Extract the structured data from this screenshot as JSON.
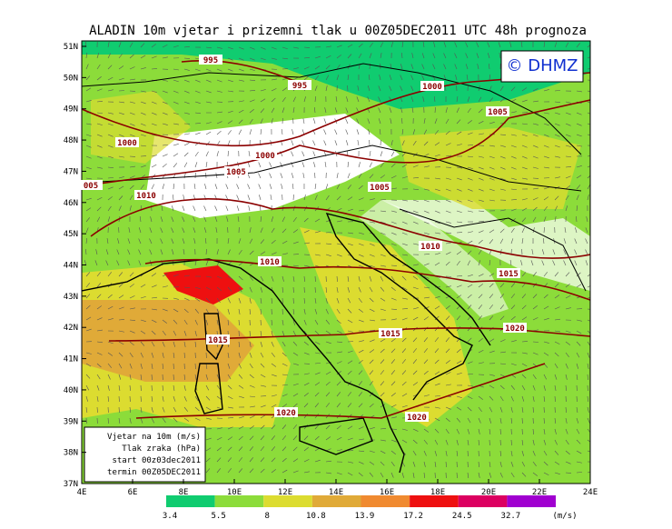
{
  "title": "ALADIN 10m vjetar i prizemni tlak u 00Z05DEC2011 UTC 48h prognoza",
  "watermark": "© DHMZ",
  "lat_labels": [
    "51N",
    "50N",
    "49N",
    "48N",
    "47N",
    "46N",
    "45N",
    "44N",
    "43N",
    "42N",
    "41N",
    "40N",
    "39N",
    "38N",
    "37N"
  ],
  "lon_labels": [
    "4E",
    "6E",
    "8E",
    "10E",
    "12E",
    "14E",
    "16E",
    "18E",
    "20E",
    "22E",
    "24E"
  ],
  "isobar_labels": [
    "995",
    "995",
    "1000",
    "1005",
    "1000",
    "1000",
    "1005",
    "005",
    "1010",
    "1005",
    "1010",
    "1010",
    "1015",
    "1015",
    "1015",
    "1020",
    "1020",
    "1020"
  ],
  "info_box": [
    "Vjetar na 10m (m/s)",
    "Tlak zraka (hPa)",
    "start 00z03dec2011",
    "termin 00Z05DEC2011"
  ],
  "colorbar": {
    "values": [
      3.4,
      5.5,
      8,
      10.8,
      13.9,
      17.2,
      24.5,
      32.7
    ],
    "colors": [
      "#10cc70",
      "#8cdc3a",
      "#dcdc30",
      "#e0aa38",
      "#f08a30",
      "#ee1010",
      "#dc0060",
      "#a000d0"
    ],
    "unit": "(m/s)"
  }
}
